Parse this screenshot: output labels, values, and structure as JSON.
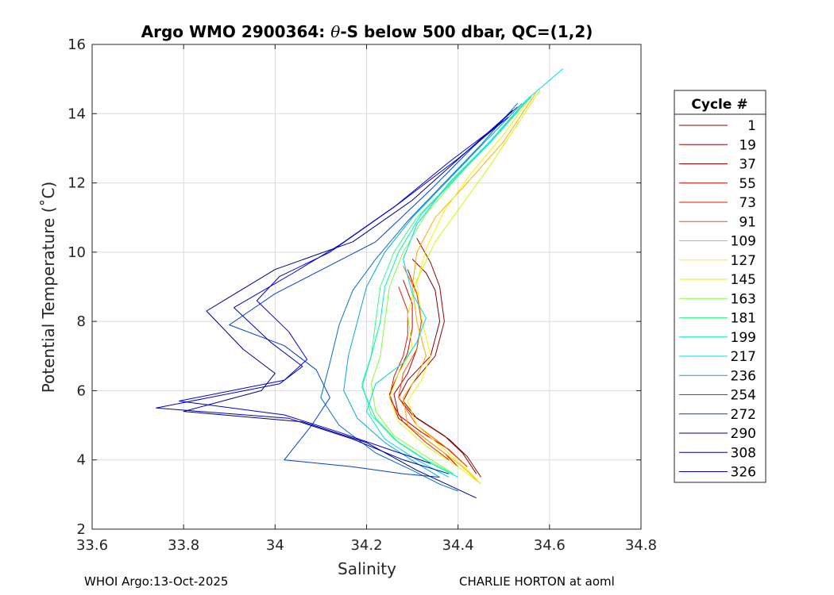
{
  "chart_data": {
    "type": "line",
    "title_prefix": "Argo WMO 2900364: ",
    "title_theta": "θ",
    "title_suffix": "-S below 500 dbar,  QC=(1,2)",
    "xlabel": "Salinity",
    "ylabel": "Potential Temperature (˚C)",
    "xlim": [
      33.6,
      34.8
    ],
    "ylim": [
      2,
      16
    ],
    "xticks": [
      "33.6",
      "33.8",
      "34",
      "34.2",
      "34.4",
      "34.6",
      "34.8"
    ],
    "yticks": [
      "2",
      "4",
      "6",
      "8",
      "10",
      "12",
      "14",
      "16"
    ],
    "grid": true,
    "legend_title": "Cycle #",
    "legend_position": "right-outside",
    "series": [
      {
        "name": "1",
        "color": "#7f0000",
        "x": [
          34.3,
          34.33,
          34.35,
          34.36,
          34.34,
          34.29,
          34.27,
          34.3,
          34.37,
          34.41,
          34.44
        ],
        "y": [
          9.8,
          9.4,
          8.9,
          8.0,
          7.0,
          6.3,
          5.8,
          5.3,
          4.7,
          4.2,
          3.6
        ]
      },
      {
        "name": "19",
        "color": "#950000",
        "x": [
          34.31,
          34.34,
          34.36,
          34.37,
          34.35,
          34.3,
          34.28,
          34.31,
          34.38,
          34.42,
          34.45
        ],
        "y": [
          10.4,
          9.7,
          9.0,
          8.0,
          7.0,
          6.2,
          5.7,
          5.2,
          4.6,
          4.1,
          3.5
        ]
      },
      {
        "name": "37",
        "color": "#b00000",
        "x": [
          34.29,
          34.31,
          34.32,
          34.31,
          34.29,
          34.26,
          34.27,
          34.32,
          34.38,
          34.42
        ],
        "y": [
          9.5,
          8.8,
          8.0,
          7.2,
          6.5,
          5.9,
          5.3,
          4.8,
          4.3,
          3.8
        ]
      },
      {
        "name": "55",
        "color": "#cc0000",
        "x": [
          34.28,
          34.3,
          34.3,
          34.29,
          34.27,
          34.25,
          34.27,
          34.32,
          34.37,
          34.4
        ],
        "y": [
          9.2,
          8.5,
          7.8,
          7.1,
          6.5,
          5.9,
          5.2,
          4.7,
          4.2,
          3.8
        ]
      },
      {
        "name": "73",
        "color": "#e81800",
        "x": [
          34.27,
          34.29,
          34.29,
          34.28,
          34.26,
          34.25,
          34.28,
          34.33,
          34.38
        ],
        "y": [
          9.0,
          8.3,
          7.6,
          7.0,
          6.4,
          5.8,
          5.1,
          4.5,
          4.0
        ]
      },
      {
        "name": "91",
        "color": "#ff5000",
        "x": [
          34.28,
          34.31,
          34.32,
          34.31,
          34.28,
          34.27,
          34.31,
          34.37,
          34.42
        ],
        "y": [
          9.6,
          8.8,
          8.0,
          7.2,
          6.5,
          5.8,
          5.0,
          4.4,
          3.8
        ]
      },
      {
        "name": "109",
        "color": "#ffaa00",
        "x": [
          34.57,
          34.5,
          34.42,
          34.35,
          34.31,
          34.3,
          34.31,
          34.33,
          34.31,
          34.28,
          34.29,
          34.35,
          34.41,
          34.45
        ],
        "y": [
          14.6,
          13.2,
          12.0,
          11.0,
          10.0,
          9.0,
          8.0,
          7.0,
          6.4,
          5.8,
          5.0,
          4.4,
          3.8,
          3.3
        ]
      },
      {
        "name": "127",
        "color": "#ffee00",
        "x": [
          34.56,
          34.5,
          34.43,
          34.37,
          34.33,
          34.31,
          34.32,
          34.34,
          34.32,
          34.29,
          34.31,
          34.37,
          34.43,
          34.45
        ],
        "y": [
          14.5,
          13.4,
          12.3,
          11.2,
          10.1,
          9.1,
          8.1,
          7.0,
          6.3,
          5.7,
          5.0,
          4.3,
          3.6,
          3.3
        ]
      },
      {
        "name": "145",
        "color": "#c4ff00",
        "x": [
          34.58,
          34.52,
          34.47,
          34.41,
          34.35,
          34.31,
          34.29,
          34.3,
          34.27,
          34.25,
          34.27,
          34.33,
          34.4,
          34.44
        ],
        "y": [
          14.7,
          13.5,
          12.5,
          11.4,
          10.3,
          9.2,
          8.2,
          7.2,
          6.5,
          5.8,
          5.1,
          4.4,
          3.8,
          3.4
        ]
      },
      {
        "name": "163",
        "color": "#7fff3a",
        "x": [
          34.55,
          34.48,
          34.4,
          34.33,
          34.28,
          34.25,
          34.24,
          34.23,
          34.21,
          34.22,
          34.26,
          34.33,
          34.39
        ],
        "y": [
          14.4,
          13.3,
          12.2,
          11.1,
          10.0,
          9.0,
          8.0,
          7.0,
          6.2,
          5.4,
          4.7,
          4.1,
          3.6
        ]
      },
      {
        "name": "181",
        "color": "#33ff88",
        "x": [
          34.55,
          34.47,
          34.39,
          34.31,
          34.26,
          34.23,
          34.22,
          34.21,
          34.19,
          34.21,
          34.26,
          34.33,
          34.39
        ],
        "y": [
          14.4,
          13.2,
          12.1,
          11.0,
          10.0,
          9.0,
          8.0,
          7.0,
          6.2,
          5.3,
          4.6,
          4.0,
          3.6
        ]
      },
      {
        "name": "199",
        "color": "#00f0b0",
        "x": [
          34.56,
          34.48,
          34.4,
          34.32,
          34.27,
          34.24,
          34.23,
          34.21,
          34.19,
          34.22,
          34.27,
          34.34,
          34.4
        ],
        "y": [
          14.5,
          13.3,
          12.2,
          11.1,
          10.0,
          9.0,
          8.0,
          7.0,
          6.1,
          5.2,
          4.5,
          3.9,
          3.5
        ]
      },
      {
        "name": "217",
        "color": "#00d8e8",
        "x": [
          34.63,
          34.55,
          34.47,
          34.38,
          34.31,
          34.28,
          34.3,
          34.33,
          34.31,
          34.28,
          34.22,
          34.2,
          34.24,
          34.31,
          34.38
        ],
        "y": [
          15.3,
          14.4,
          13.2,
          12.0,
          10.8,
          9.8,
          8.8,
          8.1,
          7.4,
          6.8,
          6.2,
          5.4,
          4.6,
          4.0,
          3.5
        ]
      },
      {
        "name": "236",
        "color": "#00a8d8",
        "x": [
          34.54,
          34.46,
          34.38,
          34.3,
          34.24,
          34.2,
          34.18,
          34.16,
          34.15,
          34.18,
          34.24,
          34.31,
          34.36
        ],
        "y": [
          14.3,
          13.2,
          12.1,
          11.0,
          10.0,
          9.0,
          8.0,
          7.0,
          6.0,
          5.2,
          4.5,
          3.9,
          3.5
        ]
      },
      {
        "name": "254",
        "color": "#0070c8",
        "x": [
          34.53,
          34.45,
          34.37,
          34.29,
          34.22,
          34.17,
          34.14,
          34.12,
          34.1,
          34.14,
          34.22,
          34.3,
          34.36,
          34.4
        ],
        "y": [
          14.3,
          13.1,
          12.0,
          10.9,
          9.8,
          8.9,
          7.9,
          6.8,
          5.8,
          5.0,
          4.2,
          3.7,
          3.3,
          3.1
        ]
      },
      {
        "name": "272",
        "color": "#0040d0",
        "x": [
          34.53,
          34.43,
          34.34,
          34.22,
          34.0,
          33.9,
          34.02,
          34.09,
          34.12,
          34.08,
          34.02,
          34.17,
          34.28,
          34.36
        ],
        "y": [
          14.2,
          13.0,
          11.8,
          10.3,
          8.8,
          7.9,
          7.3,
          6.6,
          5.8,
          5.0,
          4.0,
          3.8,
          3.6,
          3.5
        ]
      },
      {
        "name": "290",
        "color": "#000080",
        "x": [
          34.52,
          34.41,
          34.3,
          34.17,
          34.0,
          33.85,
          33.93,
          34.0,
          33.97,
          33.8,
          34.06,
          34.2,
          34.31,
          34.44
        ],
        "y": [
          14.1,
          12.8,
          11.5,
          10.3,
          9.5,
          8.3,
          7.2,
          6.5,
          6.0,
          5.4,
          5.1,
          4.5,
          3.7,
          2.9
        ]
      },
      {
        "name": "308",
        "color": "#0000b8",
        "x": [
          34.51,
          34.4,
          34.27,
          34.14,
          34.04,
          33.91,
          33.99,
          34.06,
          34.01,
          33.74,
          34.03,
          34.17,
          34.28,
          34.38
        ],
        "y": [
          13.9,
          12.7,
          11.4,
          10.2,
          9.4,
          8.4,
          7.4,
          6.7,
          6.2,
          5.5,
          5.2,
          4.6,
          4.0,
          3.6
        ]
      },
      {
        "name": "326",
        "color": "#0000d8",
        "x": [
          34.5,
          34.38,
          34.26,
          34.12,
          34.01,
          33.96,
          34.03,
          34.07,
          34.02,
          33.79,
          34.02,
          34.14,
          34.25,
          34.34
        ],
        "y": [
          13.8,
          12.6,
          11.3,
          10.0,
          9.3,
          8.6,
          7.7,
          6.9,
          6.3,
          5.7,
          5.3,
          4.8,
          4.3,
          3.9
        ]
      }
    ]
  },
  "footer": {
    "left": "WHOI Argo:13-Oct-2025",
    "right": "CHARLIE HORTON at aoml"
  }
}
